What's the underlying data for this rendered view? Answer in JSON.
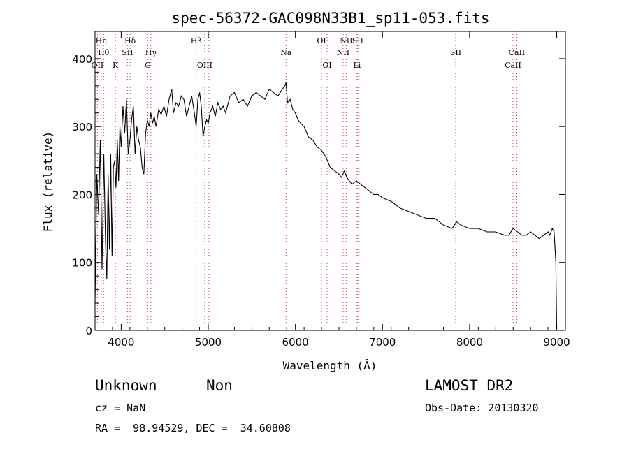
{
  "chart_data": {
    "type": "line",
    "title": "spec-56372-GAC098N33B1_sp11-053.fits",
    "xlabel": "Wavelength (Å)",
    "ylabel": "Flux (relative)",
    "xlim": [
      3700,
      9100
    ],
    "ylim": [
      0,
      440
    ],
    "x_ticks": [
      4000,
      5000,
      6000,
      7000,
      8000,
      9000
    ],
    "y_ticks": [
      0,
      100,
      200,
      300,
      400
    ],
    "line_color": "#000000",
    "marker_color": "#cc4444",
    "series": [
      {
        "x": [
          3700,
          3720,
          3740,
          3760,
          3780,
          3800,
          3820,
          3835,
          3850,
          3865,
          3880,
          3895,
          3910,
          3925,
          3940,
          3955,
          3970,
          3985,
          4000,
          4020,
          4040,
          4060,
          4080,
          4100,
          4120,
          4140,
          4160,
          4180,
          4200,
          4220,
          4240,
          4260,
          4280,
          4300,
          4320,
          4340,
          4360,
          4380,
          4400,
          4430,
          4460,
          4490,
          4520,
          4550,
          4580,
          4600,
          4630,
          4660,
          4690,
          4720,
          4750,
          4780,
          4810,
          4840,
          4861,
          4880,
          4900,
          4920,
          4940,
          4960,
          4980,
          5000,
          5020,
          5050,
          5080,
          5110,
          5140,
          5170,
          5200,
          5250,
          5300,
          5350,
          5400,
          5450,
          5500,
          5550,
          5600,
          5650,
          5700,
          5750,
          5800,
          5850,
          5880,
          5893,
          5910,
          5940,
          5970,
          6000,
          6030,
          6060,
          6100,
          6150,
          6200,
          6250,
          6300,
          6350,
          6400,
          6450,
          6500,
          6530,
          6563,
          6590,
          6620,
          6650,
          6700,
          6750,
          6800,
          6850,
          6900,
          6950,
          7000,
          7100,
          7200,
          7300,
          7400,
          7500,
          7600,
          7700,
          7800,
          7850,
          7900,
          8000,
          8100,
          8200,
          8300,
          8400,
          8450,
          8500,
          8550,
          8600,
          8650,
          8700,
          8750,
          8800,
          8850,
          8900,
          8920,
          8950,
          8970,
          8990,
          9000
        ],
        "y": [
          40,
          230,
          170,
          280,
          90,
          260,
          130,
          75,
          230,
          120,
          260,
          110,
          240,
          250,
          210,
          280,
          220,
          300,
          270,
          330,
          290,
          340,
          260,
          280,
          310,
          330,
          260,
          300,
          280,
          270,
          240,
          230,
          290,
          310,
          300,
          320,
          305,
          315,
          300,
          325,
          318,
          330,
          315,
          340,
          355,
          320,
          335,
          330,
          345,
          340,
          315,
          330,
          345,
          320,
          300,
          340,
          350,
          330,
          285,
          300,
          310,
          305,
          320,
          330,
          315,
          335,
          325,
          330,
          320,
          345,
          350,
          335,
          340,
          330,
          345,
          350,
          345,
          340,
          355,
          350,
          345,
          355,
          360,
          365,
          335,
          340,
          325,
          320,
          310,
          305,
          300,
          285,
          280,
          270,
          265,
          255,
          240,
          235,
          230,
          225,
          235,
          225,
          220,
          215,
          220,
          215,
          210,
          205,
          200,
          200,
          195,
          190,
          180,
          175,
          170,
          165,
          165,
          155,
          150,
          160,
          155,
          150,
          150,
          145,
          145,
          140,
          140,
          150,
          145,
          140,
          140,
          145,
          140,
          135,
          140,
          145,
          140,
          150,
          145,
          100,
          5
        ]
      }
    ],
    "line_markers": [
      {
        "x": 3727,
        "label": "OII",
        "row": 3
      },
      {
        "x": 3770,
        "label": "Hη",
        "row": 1
      },
      {
        "x": 3798,
        "label": "Hθ",
        "row": 2
      },
      {
        "x": 3934,
        "label": "K",
        "row": 3
      },
      {
        "x": 4072,
        "label": "SII",
        "row": 2
      },
      {
        "x": 4102,
        "label": "Hδ",
        "row": 1
      },
      {
        "x": 4305,
        "label": "G",
        "row": 3
      },
      {
        "x": 4341,
        "label": "Hγ",
        "row": 2
      },
      {
        "x": 4861,
        "label": "Hβ",
        "row": 1
      },
      {
        "x": 4959,
        "label": "OIII",
        "row": 3
      },
      {
        "x": 5007,
        "label": "",
        "row": 3
      },
      {
        "x": 5893,
        "label": "Na",
        "row": 2
      },
      {
        "x": 6300,
        "label": "OI",
        "row": 1
      },
      {
        "x": 6364,
        "label": "OI",
        "row": 3
      },
      {
        "x": 6548,
        "label": "NII",
        "row": 2
      },
      {
        "x": 6583,
        "label": "NII",
        "row": 1
      },
      {
        "x": 6708,
        "label": "Li",
        "row": 3
      },
      {
        "x": 6716,
        "label": "SII",
        "row": 1
      },
      {
        "x": 6731,
        "label": "",
        "row": 1
      },
      {
        "x": 7840,
        "label": "SII",
        "row": 2
      },
      {
        "x": 8498,
        "label": "CaII",
        "row": 3
      },
      {
        "x": 8542,
        "label": "CaII",
        "row": 2
      }
    ]
  },
  "info": {
    "class_label": "Unknown",
    "subclass_label": "Non",
    "survey_label": "LAMOST DR2",
    "cz_text": "cz = NaN",
    "obs_date_text": "Obs-Date: 20130320",
    "coords_text": "RA =  98.94529, DEC =  34.60808"
  }
}
